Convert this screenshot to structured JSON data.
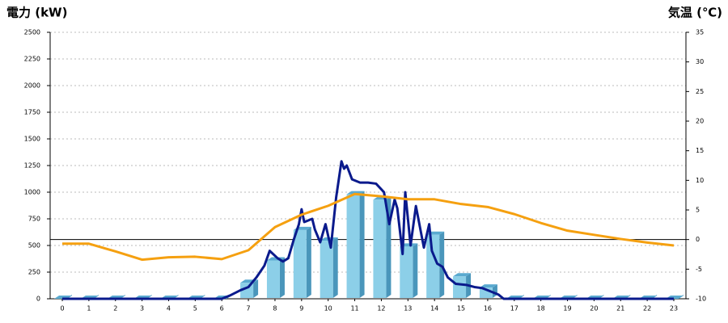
{
  "chart_data": {
    "type": "bar",
    "y_title": "電力 (kW)",
    "y2_title": "気温 (℃)",
    "y_title_color": "#1a6fb3",
    "y2_title_color": "#f07f1a",
    "categories": [
      "0",
      "1",
      "2",
      "3",
      "4",
      "5",
      "6",
      "7",
      "8",
      "9",
      "10",
      "11",
      "12",
      "13",
      "14",
      "15",
      "16",
      "17",
      "18",
      "19",
      "20",
      "21",
      "22",
      "23"
    ],
    "ylim": [
      0,
      2500
    ],
    "yticks": [
      0,
      250,
      500,
      750,
      1000,
      1250,
      1500,
      1750,
      2000,
      2250,
      2500
    ],
    "y2lim": [
      -10,
      35
    ],
    "y2ticks": [
      -10,
      -5,
      0,
      5,
      10,
      15,
      20,
      25,
      30,
      35
    ],
    "grid": true,
    "series": [
      {
        "type": "bar",
        "color": "#8ccfe8",
        "values": [
          0,
          0,
          0,
          0,
          0,
          0,
          0,
          150,
          360,
          645,
          545,
          980,
          930,
          490,
          600,
          210,
          105,
          0,
          0,
          0,
          0,
          0,
          0,
          0
        ]
      },
      {
        "type": "line",
        "color": "#0a1a8c",
        "x": [
          0,
          6,
          6.3,
          6.7,
          7,
          7.3,
          7.6,
          7.8,
          8.1,
          8.3,
          8.5,
          8.7,
          8.9,
          9.0,
          9.1,
          9.4,
          9.5,
          9.7,
          9.9,
          10.1,
          10.3,
          10.5,
          10.6,
          10.7,
          10.9,
          11.2,
          11.5,
          11.8,
          12.1,
          12.3,
          12.5,
          12.6,
          12.8,
          12.9,
          13.1,
          13.3,
          13.6,
          13.8,
          13.9,
          14.1,
          14.3,
          14.5,
          14.8,
          15.2,
          15.5,
          15.8,
          16.1,
          16.4,
          16.6,
          23
        ],
        "values": [
          0,
          0,
          30,
          80,
          110,
          200,
          310,
          450,
          380,
          350,
          380,
          550,
          700,
          840,
          720,
          750,
          650,
          530,
          700,
          480,
          950,
          1290,
          1220,
          1250,
          1120,
          1090,
          1090,
          1080,
          1000,
          700,
          930,
          850,
          420,
          1000,
          500,
          870,
          480,
          700,
          450,
          330,
          300,
          200,
          140,
          130,
          110,
          100,
          70,
          40,
          0,
          0
        ]
      },
      {
        "type": "line",
        "axis": "y2",
        "color": "#f5a010",
        "values": [
          -0.7,
          -0.7,
          -2,
          -3.4,
          -3,
          -2.9,
          -3.3,
          -1.8,
          2.1,
          4.2,
          5.7,
          7.7,
          7.3,
          6.8,
          6.8,
          6.0,
          5.5,
          4.3,
          2.8,
          1.5,
          0.8,
          0.1,
          -0.5,
          -1
        ]
      }
    ]
  }
}
